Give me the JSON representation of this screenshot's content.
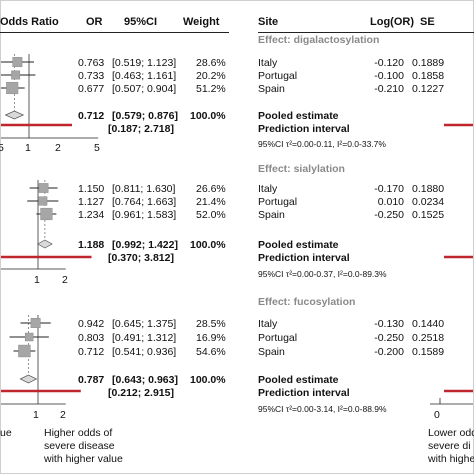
{
  "header": {
    "odds_ratio": "Odds Ratio",
    "or": "OR",
    "ci": "95%CI",
    "weight": "Weight",
    "site": "Site",
    "logor": "Log(OR)",
    "se": "SE"
  },
  "footer": {
    "left_partial": "ue",
    "higher_line1": "Higher odds of",
    "higher_line2": "severe disease",
    "higher_line3": "with higher value",
    "right_line1": "Lower odd",
    "right_line2": "severe di",
    "right_line3": "with highe"
  },
  "right_partial_axis_tick": "0",
  "chart_data": [
    {
      "type": "forest",
      "title": "Effect: digalactosylation",
      "sites": [
        {
          "or": "0.763",
          "ci": "[0.519; 1.123]",
          "weight": "28.6%",
          "site": "Italy",
          "logor": "-0.120",
          "se": "0.1889",
          "or_value": 0.763,
          "lo": 0.519,
          "hi": 1.123,
          "weight_value": 28.6
        },
        {
          "or": "0.733",
          "ci": "[0.463; 1.161]",
          "weight": "20.2%",
          "site": "Portugal",
          "logor": "-0.100",
          "se": "0.1858",
          "or_value": 0.733,
          "lo": 0.463,
          "hi": 1.161,
          "weight_value": 20.2
        },
        {
          "or": "0.677",
          "ci": "[0.507; 0.904]",
          "weight": "51.2%",
          "site": "Spain",
          "logor": "-0.210",
          "se": "0.1227",
          "or_value": 0.677,
          "lo": 0.507,
          "hi": 0.904,
          "weight_value": 51.2
        }
      ],
      "pooled": {
        "or": "0.712",
        "ci": "[0.579; 0.876]",
        "weight": "100.0%",
        "label": "Pooled estimate",
        "or_value": 0.712,
        "lo": 0.579,
        "hi": 0.876
      },
      "prediction": {
        "ci": "[0.187; 2.718]",
        "label": "Prediction interval",
        "lo": 0.187,
        "hi": 2.718
      },
      "heterogeneity": "95%CI τ²=0.00-0.11, I²=0.0-33.7%",
      "axis_ticks": [
        "5",
        "1",
        "2",
        "5"
      ]
    },
    {
      "type": "forest",
      "title": "Effect: sialylation",
      "sites": [
        {
          "or": "1.150",
          "ci": "[0.811; 1.630]",
          "weight": "26.6%",
          "site": "Italy",
          "logor": "-0.170",
          "se": "0.1880",
          "or_value": 1.15,
          "lo": 0.811,
          "hi": 1.63,
          "weight_value": 26.6
        },
        {
          "or": "1.127",
          "ci": "[0.764; 1.663]",
          "weight": "21.4%",
          "site": "Portugal",
          "logor": "0.010",
          "se": "0.0234",
          "or_value": 1.127,
          "lo": 0.764,
          "hi": 1.663,
          "weight_value": 21.4
        },
        {
          "or": "1.234",
          "ci": "[0.961; 1.583]",
          "weight": "52.0%",
          "site": "Spain",
          "logor": "-0.250",
          "se": "0.1525",
          "or_value": 1.234,
          "lo": 0.961,
          "hi": 1.583,
          "weight_value": 52.0
        }
      ],
      "pooled": {
        "or": "1.188",
        "ci": "[0.992; 1.422]",
        "weight": "100.0%",
        "label": "Pooled estimate",
        "or_value": 1.188,
        "lo": 0.992,
        "hi": 1.422
      },
      "prediction": {
        "ci": "[0.370; 3.812]",
        "label": "Prediction interval",
        "lo": 0.37,
        "hi": 3.812
      },
      "heterogeneity": "95%CI τ²=0.00-0.37, I²=0.0-89.3%",
      "axis_ticks": [
        "1",
        "2"
      ]
    },
    {
      "type": "forest",
      "title": "Effect: fucosylation",
      "sites": [
        {
          "or": "0.942",
          "ci": "[0.645; 1.375]",
          "weight": "28.5%",
          "site": "Italy",
          "logor": "-0.130",
          "se": "0.1440",
          "or_value": 0.942,
          "lo": 0.645,
          "hi": 1.375,
          "weight_value": 28.5
        },
        {
          "or": "0.803",
          "ci": "[0.491; 1.312]",
          "weight": "16.9%",
          "site": "Portugal",
          "logor": "-0.250",
          "se": "0.2518",
          "or_value": 0.803,
          "lo": 0.491,
          "hi": 1.312,
          "weight_value": 16.9
        },
        {
          "or": "0.712",
          "ci": "[0.541; 0.936]",
          "weight": "54.6%",
          "site": "Spain",
          "logor": "-0.200",
          "se": "0.1589",
          "or_value": 0.712,
          "lo": 0.541,
          "hi": 0.936,
          "weight_value": 54.6
        }
      ],
      "pooled": {
        "or": "0.787",
        "ci": "[0.643; 0.963]",
        "weight": "100.0%",
        "label": "Pooled estimate",
        "or_value": 0.787,
        "lo": 0.643,
        "hi": 0.963
      },
      "prediction": {
        "ci": "[0.212; 2.915]",
        "label": "Prediction interval",
        "lo": 0.212,
        "hi": 2.915
      },
      "heterogeneity": "95%CI τ²=0.00-3.14, I²=0.0-88.9%",
      "axis_ticks": [
        "1",
        "2"
      ]
    }
  ]
}
